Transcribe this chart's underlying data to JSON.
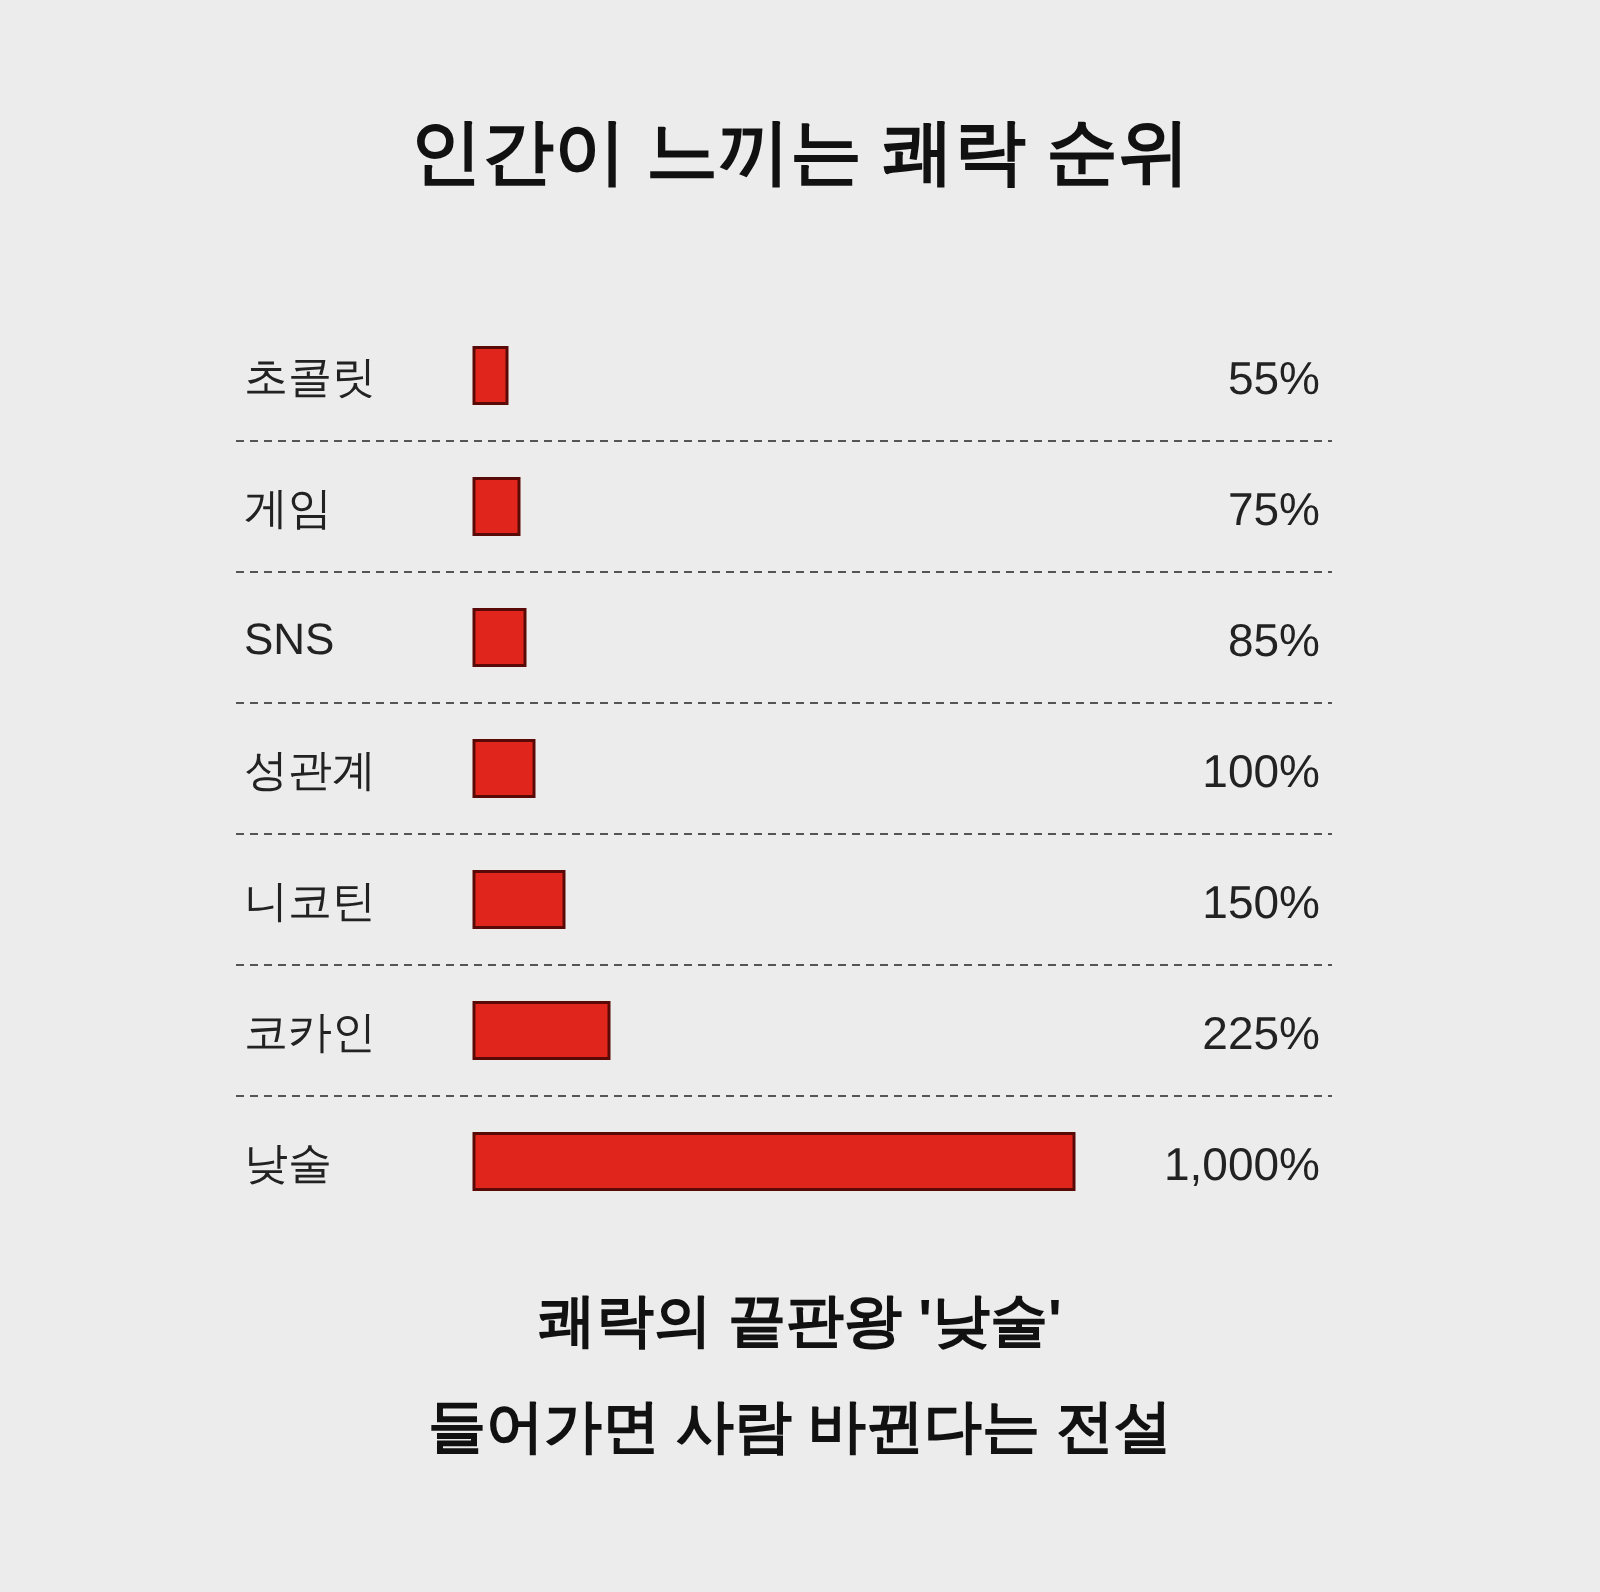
{
  "chart_data": {
    "type": "bar",
    "orientation": "horizontal",
    "title": "인간이 느끼는 쾌락 순위",
    "categories": [
      "초콜릿",
      "게임",
      "SNS",
      "성관계",
      "니코틴",
      "코카인",
      "낮술"
    ],
    "values": [
      55,
      75,
      85,
      100,
      150,
      225,
      1000
    ],
    "value_labels": [
      "55%",
      "75%",
      "85%",
      "100%",
      "150%",
      "225%",
      "1,000%"
    ],
    "color": "#e0261c",
    "grid": "y",
    "annotations": [
      "쾌락의 끝판왕 '낮술'",
      "들어가면 사람 바뀐다는 전설"
    ]
  }
}
